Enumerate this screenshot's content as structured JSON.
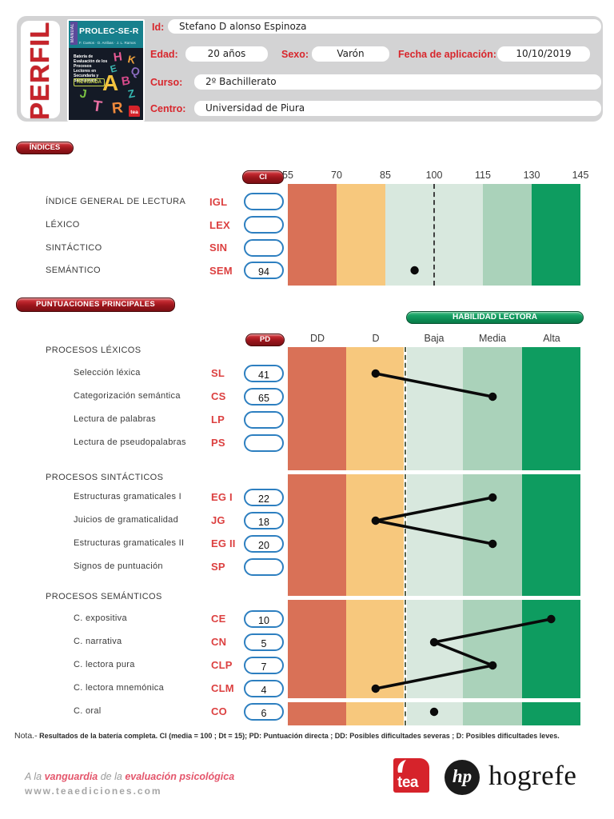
{
  "header": {
    "perfil": "PERFIL",
    "fields": {
      "id_label": "Id:",
      "id_value": "Stefano D alonso Espinoza",
      "edad_label": "Edad:",
      "edad_value": "20 años",
      "sexo_label": "Sexo:",
      "sexo_value": "Varón",
      "fecha_label": "Fecha de aplicación:",
      "fecha_value": "10/10/2019",
      "curso_label": "Curso:",
      "curso_value": "2º Bachillerato",
      "centro_label": "Centro:",
      "centro_value": "Universidad de Piura"
    },
    "cover": {
      "series_tab": "MANUAL",
      "title": "PROLEC-SE-R",
      "authors": "F. Cuetos · D. Arribas · J. L. Ramos",
      "description": "Batería de Evaluación de los Procesos Lectores en Secundaria y Bachillerato",
      "revisada": "REVISADA",
      "publisher": "tea",
      "letters": [
        "H",
        "K",
        "E",
        "Q",
        "B",
        "A",
        "J",
        "Z",
        "T",
        "R"
      ]
    }
  },
  "indices": {
    "badge": "ÍNDICES",
    "ci_label": "CI",
    "ticks": [
      "55",
      "70",
      "85",
      "100",
      "115",
      "130",
      "145"
    ],
    "rows": [
      {
        "label": "ÍNDICE GENERAL DE LECTURA",
        "code": "IGL",
        "value": ""
      },
      {
        "label": "LÉXICO",
        "code": "LEX",
        "value": ""
      },
      {
        "label": "SINTÁCTICO",
        "code": "SIN",
        "value": ""
      },
      {
        "label": "SEMÁNTICO",
        "code": "SEM",
        "value": "94"
      }
    ]
  },
  "principales": {
    "badge": "PUNTUACIONES PRINCIPALES",
    "habilidad": "HABILIDAD LECTORA",
    "pd_label": "PD",
    "columns": [
      "DD",
      "D",
      "Baja",
      "Media",
      "Alta"
    ],
    "groups": [
      {
        "label": "PROCESOS LÉXICOS",
        "rows": [
          {
            "label": "Selección léxica",
            "code": "SL",
            "pd": "41",
            "band": "D"
          },
          {
            "label": "Categorización semántica",
            "code": "CS",
            "pd": "65",
            "band": "Media"
          },
          {
            "label": "Lectura de palabras",
            "code": "LP",
            "pd": "",
            "band": null
          },
          {
            "label": "Lectura de pseudopalabras",
            "code": "PS",
            "pd": "",
            "band": null
          }
        ]
      },
      {
        "label": "PROCESOS SINTÁCTICOS",
        "rows": [
          {
            "label": "Estructuras gramaticales I",
            "code": "EG I",
            "pd": "22",
            "band": "Media"
          },
          {
            "label": "Juicios de gramaticalidad",
            "code": "JG",
            "pd": "18",
            "band": "D"
          },
          {
            "label": "Estructuras gramaticales II",
            "code": "EG II",
            "pd": "20",
            "band": "Media"
          },
          {
            "label": "Signos de puntuación",
            "code": "SP",
            "pd": "",
            "band": null
          }
        ]
      },
      {
        "label": "PROCESOS SEMÁNTICOS",
        "rows": [
          {
            "label": "C. expositiva",
            "code": "CE",
            "pd": "10",
            "band": "Alta"
          },
          {
            "label": "C. narrativa",
            "code": "CN",
            "pd": "5",
            "band": "Baja"
          },
          {
            "label": "C. lectora pura",
            "code": "CLP",
            "pd": "7",
            "band": "Media"
          },
          {
            "label": "C. lectora mnemónica",
            "code": "CLM",
            "pd": "4",
            "band": "D"
          },
          {
            "label": "C. oral",
            "code": "CO",
            "pd": "6",
            "band": "Baja",
            "separate": true
          }
        ]
      }
    ]
  },
  "note": {
    "prefix": "Nota.-",
    "body": " Resultados de la batería completa. CI (media = 100 ; Dt = 15); PD: Puntuación directa ; DD: Posibles dificultades severas ; D: Posibles dificultades leves."
  },
  "footer": {
    "tagline": [
      "A la ",
      "vanguardia",
      " de la ",
      "evaluación psicológica"
    ],
    "url": "www.teaediciones.com",
    "tea_label": "tea",
    "hogrefe_monogram": "hp",
    "hogrefe_label": "hogrefe"
  },
  "colors": {
    "accent_red": "#d8262c",
    "badge_red": "#9c161c",
    "code_red": "#dc4040",
    "habilidad_green": "#0b8a52",
    "band_dd": "#d97157",
    "band_d": "#f7c87d",
    "band_baja": "#d8e8de",
    "band_media": "#aad2ba",
    "band_alta": "#0e9c60",
    "box_border_blue": "#2d7fc0",
    "header_grey": "#d3d3d4"
  },
  "chart_data": [
    {
      "type": "scatter",
      "title": "ÍNDICES",
      "xlabel": "CI",
      "x_range": [
        55,
        145
      ],
      "x_ticks": [
        55,
        70,
        85,
        100,
        115,
        130,
        145
      ],
      "reference_line": 100,
      "bands": [
        {
          "range": [
            55,
            70
          ],
          "color": "#d97157"
        },
        {
          "range": [
            70,
            85
          ],
          "color": "#f7c87d"
        },
        {
          "range": [
            85,
            115
          ],
          "color": "#d8e8de"
        },
        {
          "range": [
            115,
            130
          ],
          "color": "#aad2ba"
        },
        {
          "range": [
            130,
            145
          ],
          "color": "#0e9c60"
        }
      ],
      "points": [
        {
          "code": "IGL",
          "value": null
        },
        {
          "code": "LEX",
          "value": null
        },
        {
          "code": "SIN",
          "value": null
        },
        {
          "code": "SEM",
          "value": 94
        }
      ]
    },
    {
      "type": "scatter",
      "title": "PUNTUACIONES PRINCIPALES",
      "columns": [
        "DD",
        "D",
        "Baja",
        "Media",
        "Alta"
      ],
      "legend": "HABILIDAD LECTORA",
      "groups": [
        {
          "name": "PROCESOS LÉXICOS",
          "connected": true,
          "points": [
            {
              "code": "SL",
              "pd": 41,
              "band": "D"
            },
            {
              "code": "CS",
              "pd": 65,
              "band": "Media"
            }
          ]
        },
        {
          "name": "PROCESOS SINTÁCTICOS",
          "connected": true,
          "points": [
            {
              "code": "EG I",
              "pd": 22,
              "band": "Media"
            },
            {
              "code": "JG",
              "pd": 18,
              "band": "D"
            },
            {
              "code": "EG II",
              "pd": 20,
              "band": "Media"
            }
          ]
        },
        {
          "name": "PROCESOS SEMÁNTICOS",
          "connected": true,
          "points": [
            {
              "code": "CE",
              "pd": 10,
              "band": "Alta"
            },
            {
              "code": "CN",
              "pd": 5,
              "band": "Baja"
            },
            {
              "code": "CLP",
              "pd": 7,
              "band": "Media"
            },
            {
              "code": "CLM",
              "pd": 4,
              "band": "D"
            }
          ]
        },
        {
          "name": "C. oral",
          "connected": false,
          "points": [
            {
              "code": "CO",
              "pd": 6,
              "band": "Baja"
            }
          ]
        }
      ]
    }
  ]
}
